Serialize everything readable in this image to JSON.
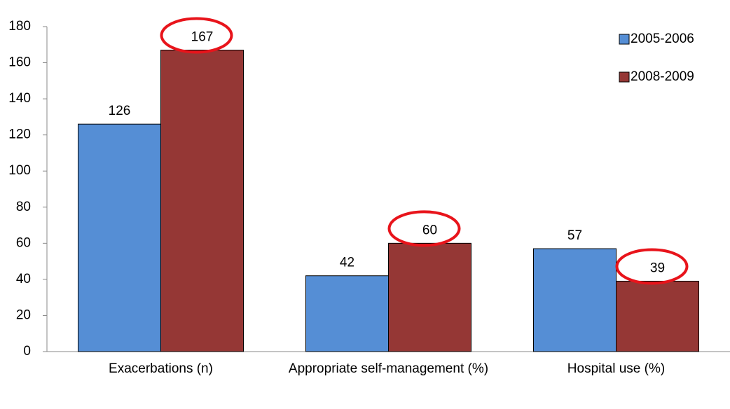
{
  "chart_data": {
    "type": "bar",
    "categories": [
      "Exacerbations (n)",
      "Appropriate self-management (%)",
      "Hospital use (%)"
    ],
    "series": [
      {
        "name": "2005-2006",
        "color": "#558ed5",
        "values": [
          126,
          42,
          57
        ]
      },
      {
        "name": "2008-2009",
        "color": "#953735",
        "values": [
          167,
          60,
          39
        ]
      }
    ],
    "ylim": [
      0,
      180
    ],
    "yticks": [
      0,
      20,
      40,
      60,
      80,
      100,
      120,
      140,
      160,
      180
    ],
    "grid": false,
    "legend": "top-right"
  }
}
